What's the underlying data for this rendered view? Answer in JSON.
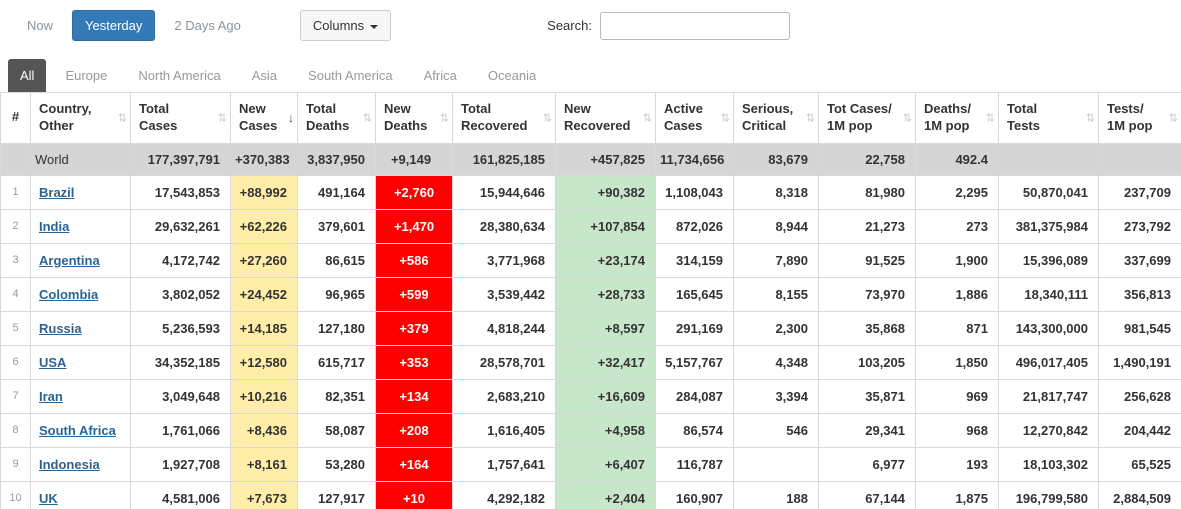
{
  "toolbar": {
    "now": "Now",
    "yesterday": "Yesterday",
    "two_days_ago": "2 Days Ago",
    "columns": "Columns",
    "search_label": "Search:",
    "search_value": ""
  },
  "tabs": [
    {
      "key": "all",
      "label": "All",
      "active": true
    },
    {
      "key": "europe",
      "label": "Europe",
      "active": false
    },
    {
      "key": "north-america",
      "label": "North America",
      "active": false
    },
    {
      "key": "asia",
      "label": "Asia",
      "active": false
    },
    {
      "key": "south-america",
      "label": "South America",
      "active": false
    },
    {
      "key": "africa",
      "label": "Africa",
      "active": false
    },
    {
      "key": "oceania",
      "label": "Oceania",
      "active": false
    }
  ],
  "table": {
    "columns": [
      {
        "key": "rank",
        "label": "#",
        "sortable": false
      },
      {
        "key": "country",
        "label": "Country,\nOther"
      },
      {
        "key": "total_cases",
        "label": "Total\nCases"
      },
      {
        "key": "new_cases",
        "label": "New\nCases",
        "sorted": "desc"
      },
      {
        "key": "total_deaths",
        "label": "Total\nDeaths"
      },
      {
        "key": "new_deaths",
        "label": "New\nDeaths"
      },
      {
        "key": "total_recovered",
        "label": "Total\nRecovered"
      },
      {
        "key": "new_recovered",
        "label": "New\nRecovered"
      },
      {
        "key": "active_cases",
        "label": "Active\nCases"
      },
      {
        "key": "serious_critical",
        "label": "Serious,\nCritical"
      },
      {
        "key": "cases_per_1m",
        "label": "Tot Cases/\n1M pop"
      },
      {
        "key": "deaths_per_1m",
        "label": "Deaths/\n1M pop"
      },
      {
        "key": "total_tests",
        "label": "Total\nTests"
      },
      {
        "key": "tests_per_1m",
        "label": "Tests/\n1M pop"
      }
    ],
    "world_row": {
      "rank": "",
      "country": "World",
      "total_cases": "177,397,791",
      "new_cases": "+370,383",
      "total_deaths": "3,837,950",
      "new_deaths": "+9,149",
      "total_recovered": "161,825,185",
      "new_recovered": "+457,825",
      "active_cases": "11,734,656",
      "serious_critical": "83,679",
      "cases_per_1m": "22,758",
      "deaths_per_1m": "492.4",
      "total_tests": "",
      "tests_per_1m": ""
    },
    "rows": [
      {
        "rank": "1",
        "country": "Brazil",
        "total_cases": "17,543,853",
        "new_cases": "+88,992",
        "total_deaths": "491,164",
        "new_deaths": "+2,760",
        "total_recovered": "15,944,646",
        "new_recovered": "+90,382",
        "active_cases": "1,108,043",
        "serious_critical": "8,318",
        "cases_per_1m": "81,980",
        "deaths_per_1m": "2,295",
        "total_tests": "50,870,041",
        "tests_per_1m": "237,709"
      },
      {
        "rank": "2",
        "country": "India",
        "total_cases": "29,632,261",
        "new_cases": "+62,226",
        "total_deaths": "379,601",
        "new_deaths": "+1,470",
        "total_recovered": "28,380,634",
        "new_recovered": "+107,854",
        "active_cases": "872,026",
        "serious_critical": "8,944",
        "cases_per_1m": "21,273",
        "deaths_per_1m": "273",
        "total_tests": "381,375,984",
        "tests_per_1m": "273,792"
      },
      {
        "rank": "3",
        "country": "Argentina",
        "total_cases": "4,172,742",
        "new_cases": "+27,260",
        "total_deaths": "86,615",
        "new_deaths": "+586",
        "total_recovered": "3,771,968",
        "new_recovered": "+23,174",
        "active_cases": "314,159",
        "serious_critical": "7,890",
        "cases_per_1m": "91,525",
        "deaths_per_1m": "1,900",
        "total_tests": "15,396,089",
        "tests_per_1m": "337,699"
      },
      {
        "rank": "4",
        "country": "Colombia",
        "total_cases": "3,802,052",
        "new_cases": "+24,452",
        "total_deaths": "96,965",
        "new_deaths": "+599",
        "total_recovered": "3,539,442",
        "new_recovered": "+28,733",
        "active_cases": "165,645",
        "serious_critical": "8,155",
        "cases_per_1m": "73,970",
        "deaths_per_1m": "1,886",
        "total_tests": "18,340,111",
        "tests_per_1m": "356,813"
      },
      {
        "rank": "5",
        "country": "Russia",
        "total_cases": "5,236,593",
        "new_cases": "+14,185",
        "total_deaths": "127,180",
        "new_deaths": "+379",
        "total_recovered": "4,818,244",
        "new_recovered": "+8,597",
        "active_cases": "291,169",
        "serious_critical": "2,300",
        "cases_per_1m": "35,868",
        "deaths_per_1m": "871",
        "total_tests": "143,300,000",
        "tests_per_1m": "981,545"
      },
      {
        "rank": "6",
        "country": "USA",
        "total_cases": "34,352,185",
        "new_cases": "+12,580",
        "total_deaths": "615,717",
        "new_deaths": "+353",
        "total_recovered": "28,578,701",
        "new_recovered": "+32,417",
        "active_cases": "5,157,767",
        "serious_critical": "4,348",
        "cases_per_1m": "103,205",
        "deaths_per_1m": "1,850",
        "total_tests": "496,017,405",
        "tests_per_1m": "1,490,191"
      },
      {
        "rank": "7",
        "country": "Iran",
        "total_cases": "3,049,648",
        "new_cases": "+10,216",
        "total_deaths": "82,351",
        "new_deaths": "+134",
        "total_recovered": "2,683,210",
        "new_recovered": "+16,609",
        "active_cases": "284,087",
        "serious_critical": "3,394",
        "cases_per_1m": "35,871",
        "deaths_per_1m": "969",
        "total_tests": "21,817,747",
        "tests_per_1m": "256,628"
      },
      {
        "rank": "8",
        "country": "South Africa",
        "total_cases": "1,761,066",
        "new_cases": "+8,436",
        "total_deaths": "58,087",
        "new_deaths": "+208",
        "total_recovered": "1,616,405",
        "new_recovered": "+4,958",
        "active_cases": "86,574",
        "serious_critical": "546",
        "cases_per_1m": "29,341",
        "deaths_per_1m": "968",
        "total_tests": "12,270,842",
        "tests_per_1m": "204,442"
      },
      {
        "rank": "9",
        "country": "Indonesia",
        "total_cases": "1,927,708",
        "new_cases": "+8,161",
        "total_deaths": "53,280",
        "new_deaths": "+164",
        "total_recovered": "1,757,641",
        "new_recovered": "+6,407",
        "active_cases": "116,787",
        "serious_critical": "",
        "cases_per_1m": "6,977",
        "deaths_per_1m": "193",
        "total_tests": "18,103,302",
        "tests_per_1m": "65,525"
      },
      {
        "rank": "10",
        "country": "UK",
        "total_cases": "4,581,006",
        "new_cases": "+7,673",
        "total_deaths": "127,917",
        "new_deaths": "+10",
        "total_recovered": "4,292,182",
        "new_recovered": "+2,404",
        "active_cases": "160,907",
        "serious_critical": "188",
        "cases_per_1m": "67,144",
        "deaths_per_1m": "1,875",
        "total_tests": "196,799,580",
        "tests_per_1m": "2,884,509"
      }
    ]
  },
  "colors": {
    "accent": "#337ab7",
    "new-cases-bg": "#FFEEAA",
    "new-deaths-bg": "#FF0000",
    "new-deaths-text": "#FFFFFF",
    "new-recovered-bg": "#C8E6C9",
    "world-row-bg": "#D5D5D5",
    "link": "#2A6496",
    "tab-active-bg": "#555555",
    "tab-inactive-text": "#999999"
  }
}
